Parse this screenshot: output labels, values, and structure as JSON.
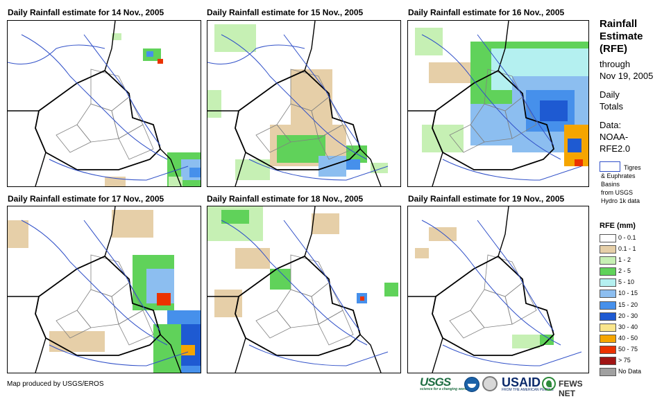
{
  "panels": [
    {
      "title": "Daily Rainfall estimate for 14 Nov., 2005"
    },
    {
      "title": "Daily Rainfall estimate for 15 Nov., 2005"
    },
    {
      "title": "Daily Rainfall estimate for 16 Nov., 2005"
    },
    {
      "title": "Daily Rainfall estimate for 17 Nov., 2005"
    },
    {
      "title": "Daily Rainfall estimate for 18 Nov., 2005"
    },
    {
      "title": "Daily Rainfall estimate for 19 Nov., 2005"
    }
  ],
  "sidebar": {
    "title_lines": [
      "Rainfall",
      "Estimate",
      "(RFE)"
    ],
    "through_lines": [
      "through",
      "Nov 19, 2005"
    ],
    "daily_lines": [
      "Daily",
      "Totals"
    ],
    "data_lines": [
      "Data:",
      "NOAA-",
      "RFE2.0"
    ],
    "basin_lines": [
      "Tigres",
      "& Euphrates",
      "Basins",
      "from USGS",
      "Hydro 1k data"
    ]
  },
  "legend": {
    "title": "RFE (mm)",
    "items": [
      {
        "label": "0 - 0.1",
        "color": "#ffffff"
      },
      {
        "label": "0.1 - 1",
        "color": "#e6cfa8"
      },
      {
        "label": "1 - 2",
        "color": "#c6f0b4"
      },
      {
        "label": "2 - 5",
        "color": "#60d25a"
      },
      {
        "label": "5 - 10",
        "color": "#b4f0f0"
      },
      {
        "label": "10 - 15",
        "color": "#8cbef0"
      },
      {
        "label": "15 - 20",
        "color": "#4690eb"
      },
      {
        "label": "20 - 30",
        "color": "#1e5ad2"
      },
      {
        "label": "30 - 40",
        "color": "#fae68c"
      },
      {
        "label": "40 - 50",
        "color": "#f5a500"
      },
      {
        "label": "50 - 75",
        "color": "#eb3200"
      },
      {
        "label": "> 75",
        "color": "#a01414"
      },
      {
        "label": "No Data",
        "color": "#a0a0a0"
      }
    ]
  },
  "footer": {
    "credit": "Map produced by USGS/EROS",
    "logo_usgs": "USGS",
    "logo_usgs_tagline": "science for a changing world",
    "logo_usaid": "USAID",
    "logo_usaid_tagline": "FROM THE AMERICAN PEOPLE",
    "logo_fews": "FEWS NET"
  },
  "colors": {
    "border": "#000000",
    "rivers": "#3050c8",
    "provinces": "#808080"
  },
  "icons": [
    "usgs-logo",
    "noaa-logo",
    "seal-logo",
    "usaid-logo",
    "fews-net-icon"
  ]
}
